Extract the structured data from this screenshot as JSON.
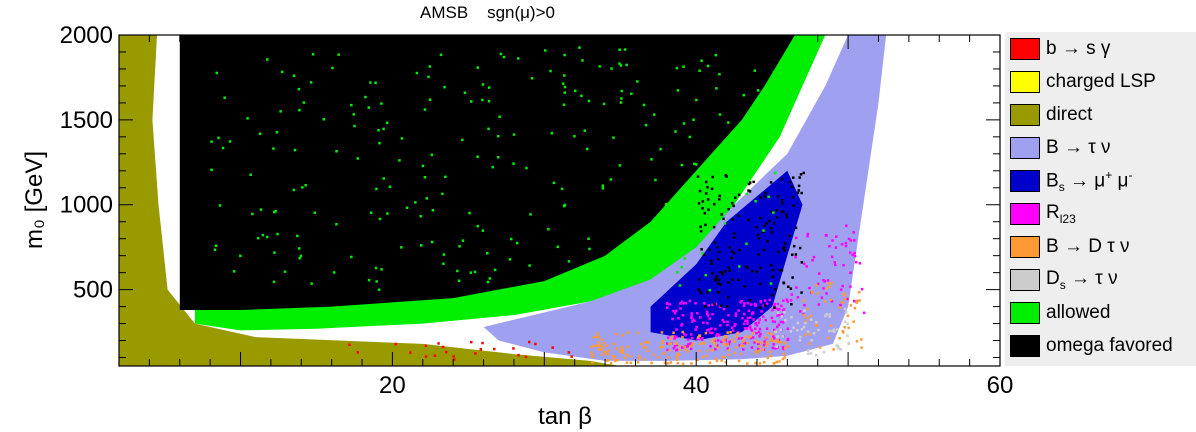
{
  "chart_data": {
    "type": "scatter",
    "title": "AMSB    sgn(μ)>0",
    "xlabel": "tan β",
    "ylabel": "m₀ [GeV]",
    "xlim": [
      2,
      60
    ],
    "ylim": [
      50,
      2000
    ],
    "xticks": [
      20,
      40,
      60
    ],
    "yticks": [
      500,
      1000,
      1500,
      2000
    ],
    "grid": false,
    "legend_position": "right",
    "series": [
      {
        "name": "b → s γ",
        "color": "#ff0000"
      },
      {
        "name": "charged LSP",
        "color": "#ffff00"
      },
      {
        "name": "direct",
        "color": "#999900"
      },
      {
        "name": "B → τ ν",
        "color": "#a0a0f0"
      },
      {
        "name": "Bs → μ+ μ-",
        "color": "#0000cc"
      },
      {
        "name": "Rl23",
        "color": "#ff00ff"
      },
      {
        "name": "B → D τ ν",
        "color": "#ff9933"
      },
      {
        "name": "Ds → τ ν",
        "color": "#cccccc"
      },
      {
        "name": "allowed",
        "color": "#00ee00"
      },
      {
        "name": "omega favored",
        "color": "#000000"
      }
    ],
    "regions": {
      "direct": [
        [
          2,
          50
        ],
        [
          2,
          2000
        ],
        [
          4.5,
          2000
        ],
        [
          4.2,
          1500
        ],
        [
          4.6,
          1000
        ],
        [
          5.2,
          500
        ],
        [
          7,
          300
        ],
        [
          11,
          220
        ],
        [
          22,
          180
        ],
        [
          28,
          120
        ],
        [
          33,
          80
        ],
        [
          35,
          50
        ]
      ],
      "allowed": [
        [
          7,
          300
        ],
        [
          7,
          2000
        ],
        [
          48.5,
          2000
        ],
        [
          47,
          1700
        ],
        [
          45.5,
          1400
        ],
        [
          44,
          1200
        ],
        [
          42.5,
          1000
        ],
        [
          40,
          750
        ],
        [
          37,
          560
        ],
        [
          33,
          430
        ],
        [
          28,
          350
        ],
        [
          22,
          300
        ],
        [
          15,
          270
        ],
        [
          10,
          260
        ]
      ],
      "B_tau_nu": [
        [
          33,
          430
        ],
        [
          36,
          560
        ],
        [
          39.5,
          750
        ],
        [
          42.5,
          1000
        ],
        [
          46,
          1300
        ],
        [
          48.5,
          1700
        ],
        [
          50,
          2000
        ],
        [
          52.5,
          2000
        ],
        [
          52,
          1600
        ],
        [
          51,
          1000
        ],
        [
          50,
          400
        ],
        [
          49,
          180
        ],
        [
          46,
          110
        ],
        [
          43,
          90
        ],
        [
          38,
          80
        ],
        [
          34,
          80
        ],
        [
          30,
          130
        ],
        [
          27,
          200
        ],
        [
          26,
          280
        ]
      ],
      "Bs_mumu": [
        [
          37,
          400
        ],
        [
          40,
          650
        ],
        [
          42,
          900
        ],
        [
          44,
          1050
        ],
        [
          46,
          1200
        ],
        [
          47,
          1000
        ],
        [
          46,
          700
        ],
        [
          45,
          400
        ],
        [
          43,
          250
        ],
        [
          40,
          200
        ],
        [
          37,
          250
        ]
      ],
      "omega_favored": [
        [
          6,
          380
        ],
        [
          6,
          2000
        ],
        [
          46.5,
          2000
        ],
        [
          44.5,
          1700
        ],
        [
          43,
          1500
        ],
        [
          41,
          1300
        ],
        [
          39,
          1100
        ],
        [
          37,
          900
        ],
        [
          34,
          700
        ],
        [
          30,
          550
        ],
        [
          24,
          450
        ],
        [
          16,
          400
        ],
        [
          10,
          380
        ]
      ]
    }
  }
}
